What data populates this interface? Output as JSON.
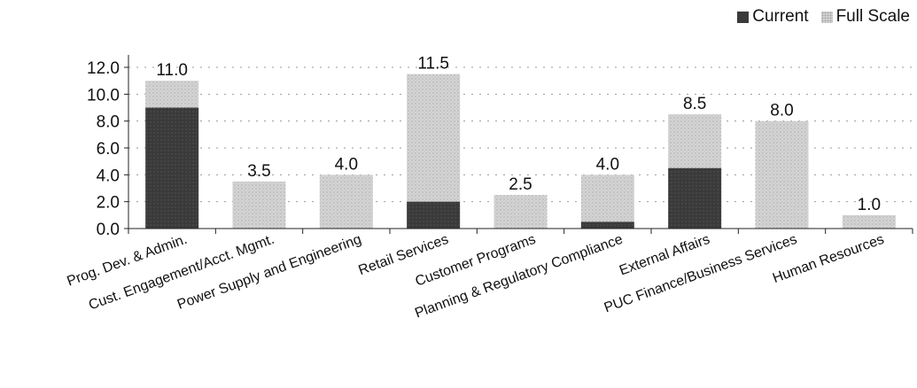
{
  "chart_data": {
    "type": "bar",
    "stacked": true,
    "categories": [
      "Prog. Dev. & Admin.",
      "Cust. Engagement/Acct. Mgmt.",
      "Power Supply and Engineering",
      "Retail Services",
      "Customer Programs",
      "Planning & Regulatory Compliance",
      "External Affairs",
      "PUC Finance/Business Services",
      "Human Resources"
    ],
    "series": [
      {
        "name": "Current",
        "values": [
          9.0,
          0,
          0,
          2.0,
          0,
          0.5,
          4.5,
          0,
          0
        ]
      },
      {
        "name": "Full Scale",
        "values": [
          2.0,
          3.5,
          4.0,
          9.5,
          2.5,
          3.5,
          4.0,
          8.0,
          1.0
        ]
      }
    ],
    "totals": [
      11.0,
      3.5,
      4.0,
      11.5,
      2.5,
      4.0,
      8.5,
      8.0,
      1.0
    ],
    "total_labels": [
      "11.0",
      "3.5",
      "4.0",
      "11.5",
      "2.5",
      "4.0",
      "8.5",
      "8.0",
      "1.0"
    ],
    "y_ticks": [
      "0.0",
      "2.0",
      "4.0",
      "6.0",
      "8.0",
      "10.0",
      "12.0"
    ],
    "ylim": [
      0,
      12
    ],
    "grid": true,
    "legend_position": "top-right",
    "colors": {
      "current": "#3a3a3a",
      "full_scale": "#d2d2d2"
    }
  }
}
